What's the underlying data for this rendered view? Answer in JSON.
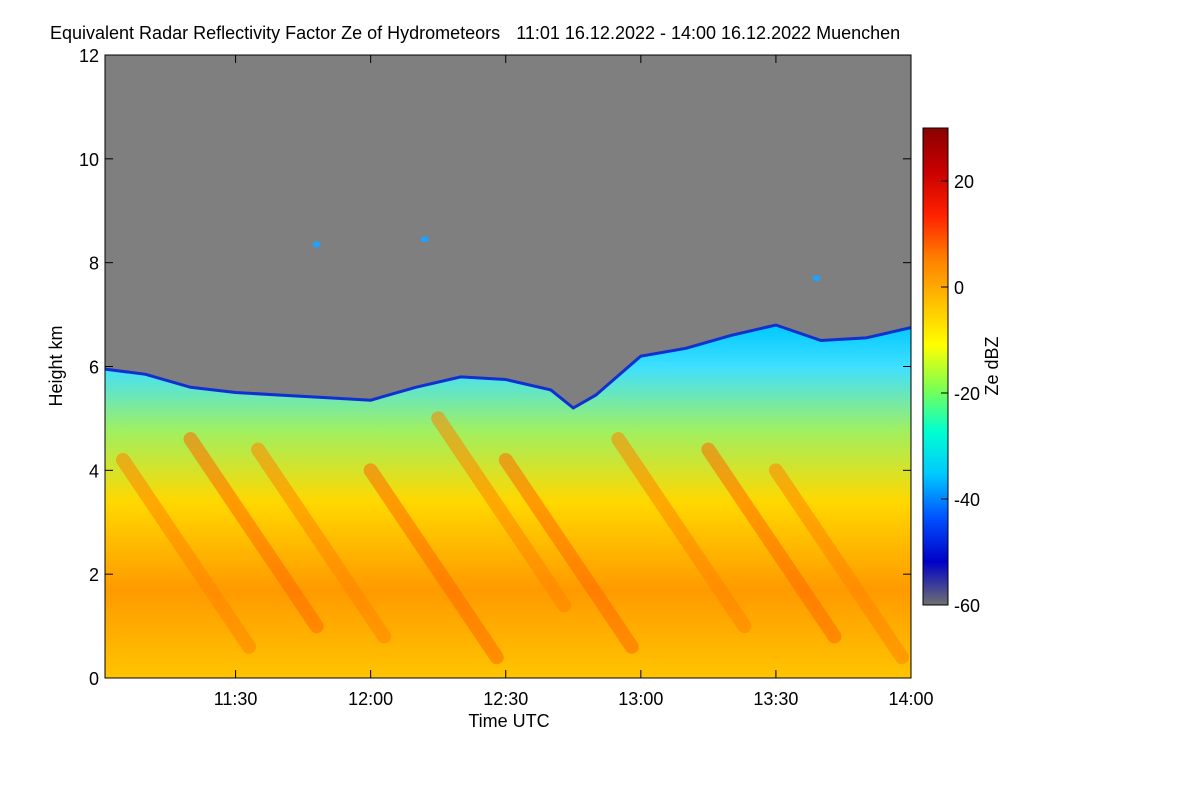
{
  "chart_data": {
    "type": "heatmap",
    "title": "Equivalent Radar Reflectivity Factor Ze of Hydrometeors",
    "time_range_text": "11:01 16.12.2022 - 14:00 16.12.2022",
    "location": "Muenchen",
    "xlabel": "Time UTC",
    "ylabel": "Height km",
    "x_ticks": [
      "11:30",
      "12:00",
      "12:30",
      "13:00",
      "13:30",
      "14:00"
    ],
    "x_tick_minutes_since_11": [
      30,
      60,
      90,
      120,
      150,
      180
    ],
    "xlim_minutes_since_11": [
      1,
      180
    ],
    "y_ticks": [
      "0",
      "2",
      "4",
      "6",
      "8",
      "10",
      "12"
    ],
    "ylim": [
      0,
      12
    ],
    "colorbar": {
      "label": "Ze dBZ",
      "ticks": [
        "20",
        "0",
        "-20",
        "-40",
        "-60"
      ],
      "range": [
        -60,
        30
      ],
      "colors": [
        "#707070",
        "#0000c8",
        "#0050ff",
        "#00c8ff",
        "#00ffd0",
        "#7fff50",
        "#ffff00",
        "#ffbf00",
        "#ff7f00",
        "#ff2000",
        "#c80000",
        "#8b0000"
      ]
    },
    "no_signal_color": "#7f7f7f",
    "cloud_top_km": [
      [
        1,
        5.95
      ],
      [
        10,
        5.85
      ],
      [
        20,
        5.6
      ],
      [
        30,
        5.5
      ],
      [
        40,
        5.45
      ],
      [
        50,
        5.4
      ],
      [
        60,
        5.35
      ],
      [
        70,
        5.6
      ],
      [
        80,
        5.8
      ],
      [
        90,
        5.75
      ],
      [
        100,
        5.55
      ],
      [
        105,
        5.2
      ],
      [
        110,
        5.45
      ],
      [
        120,
        6.2
      ],
      [
        130,
        6.35
      ],
      [
        140,
        6.6
      ],
      [
        150,
        6.8
      ],
      [
        160,
        6.5
      ],
      [
        170,
        6.55
      ],
      [
        180,
        6.75
      ]
    ],
    "isolated_echoes": [
      {
        "time_min": 48,
        "height_km": 8.35
      },
      {
        "time_min": 72,
        "height_km": 8.45
      },
      {
        "time_min": 159,
        "height_km": 7.7
      }
    ]
  }
}
